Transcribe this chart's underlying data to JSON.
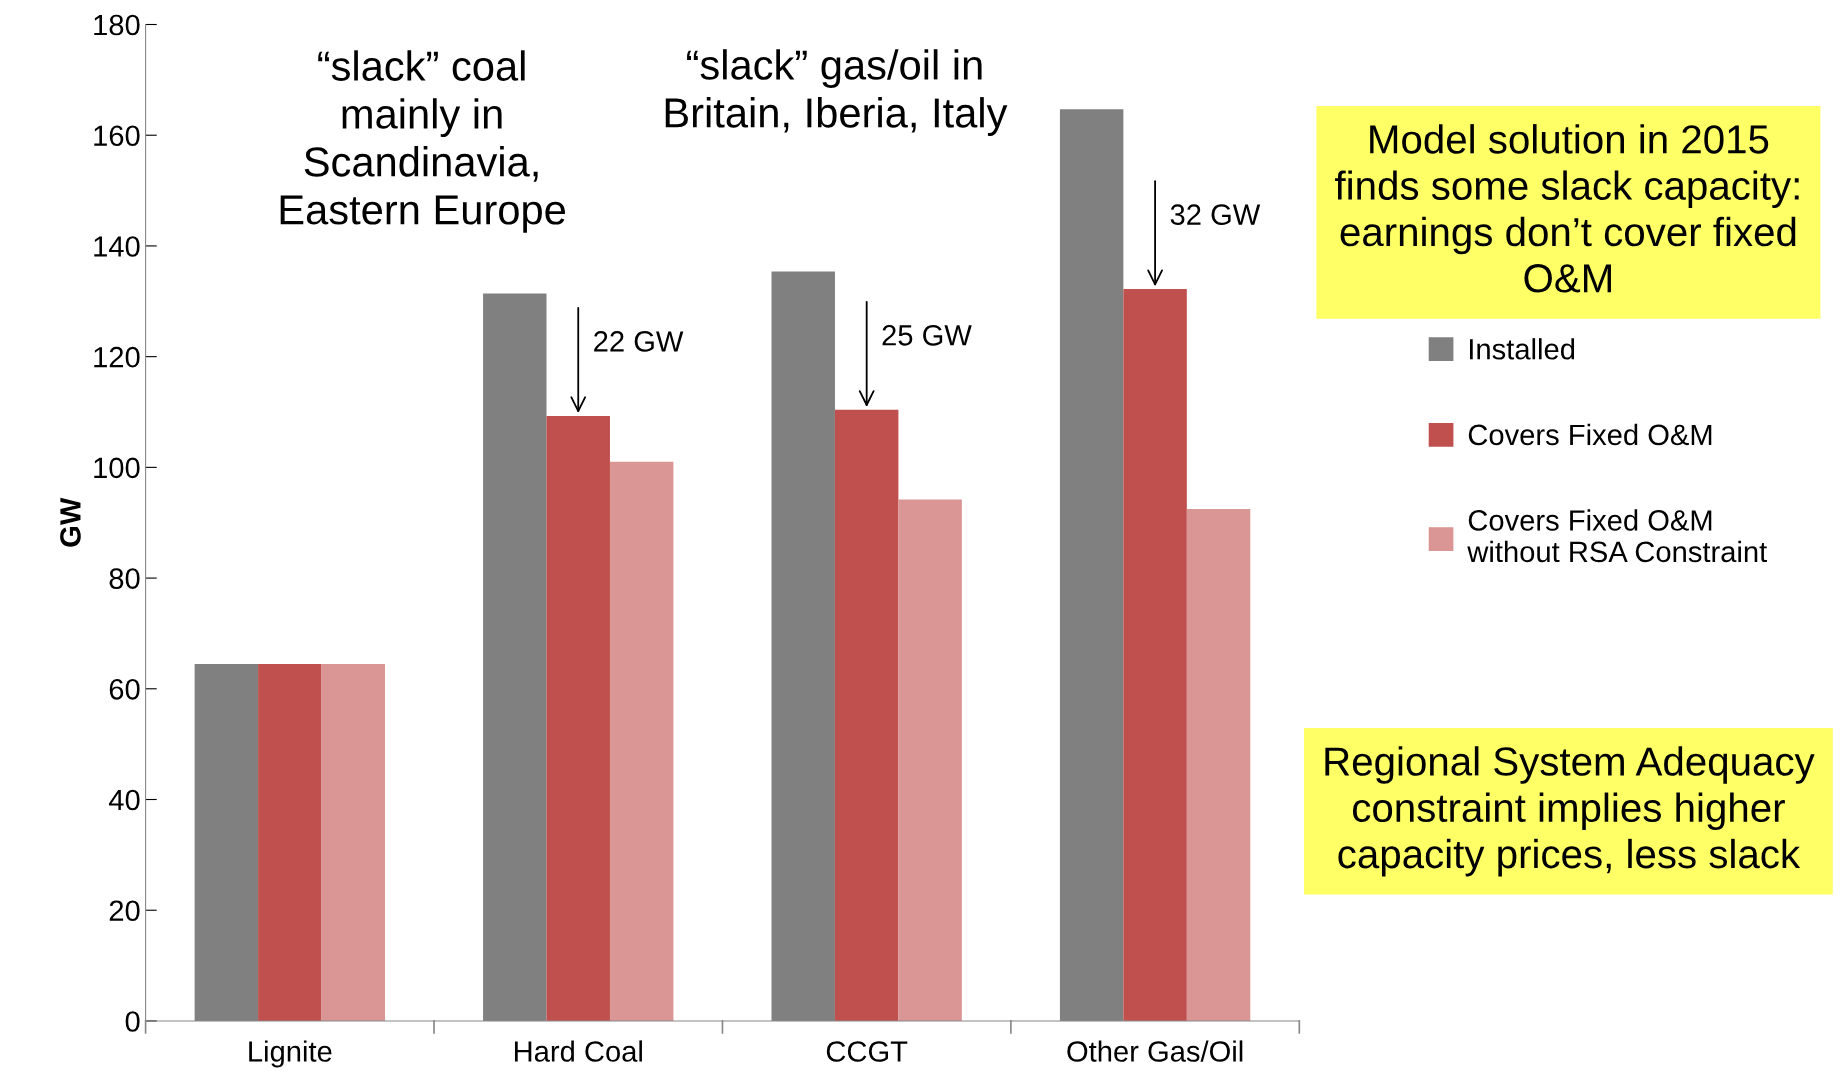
{
  "chart_data": {
    "type": "bar",
    "ylabel": "GW",
    "categories": [
      "Lignite",
      "Hard Coal",
      "CCGT",
      "Other Gas/Oil"
    ],
    "series": [
      {
        "name": "Installed",
        "color": "#808080",
        "values": [
          64.5,
          131.4,
          135.4,
          164.7
        ]
      },
      {
        "name": "Covers Fixed O&M",
        "color": "#c0504d",
        "values": [
          64.5,
          109.3,
          110.4,
          132.2
        ]
      },
      {
        "name": "Covers Fixed O&M\nwithout RSA Constraint",
        "color": "#d99694",
        "values": [
          64.5,
          101.0,
          94.2,
          92.5
        ]
      }
    ],
    "ylim": [
      0,
      180
    ],
    "yticks": [
      0,
      20,
      40,
      60,
      80,
      100,
      120,
      140,
      160,
      180
    ],
    "grid": false,
    "legend": "right",
    "annotations": [
      "“slack” coal\nmainly in\nScandinavia,\nEastern Europe",
      "“slack” gas/oil in\nBritain, Iberia, Italy",
      {
        "text": "22 GW",
        "x": "Hard Coal",
        "y": 109.3
      },
      {
        "text": "25 GW",
        "x": "CCGT",
        "y": 110.4
      },
      {
        "text": "32 GW",
        "x": "Other Gas/Oil",
        "y": 132.2
      },
      "Model solution in 2015\nfinds some slack capacity:\nearnings don’t cover fixed\nO&M",
      "Regional System Adequacy\nconstraint implies higher\ncapacity prices, less slack"
    ]
  }
}
